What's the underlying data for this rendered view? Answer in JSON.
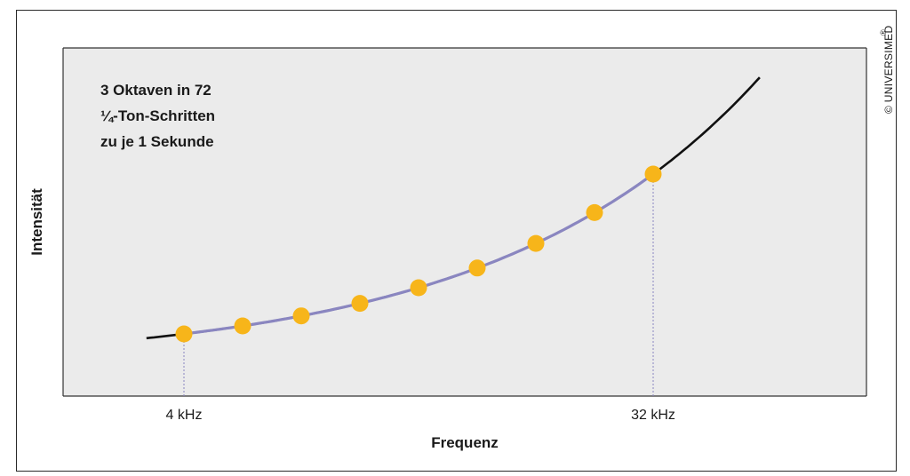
{
  "chart_data": {
    "type": "line",
    "xlabel": "Frequenz",
    "ylabel": "Intensität",
    "x_ticks": [
      "4 kHz",
      "32 kHz"
    ],
    "annotation": [
      "3 Oktaven in 72",
      "¼-Ton-Schritten",
      "zu je 1 Sekunde"
    ],
    "background_color": "#ebebeb",
    "curve_color": "#111111",
    "highlight_color": "#8a86c0",
    "point_color": "#f7b51a",
    "sample_points": 9,
    "grid": false,
    "legend": "none"
  },
  "copyright": "© UNIVERSIMED",
  "registered_mark": "®"
}
